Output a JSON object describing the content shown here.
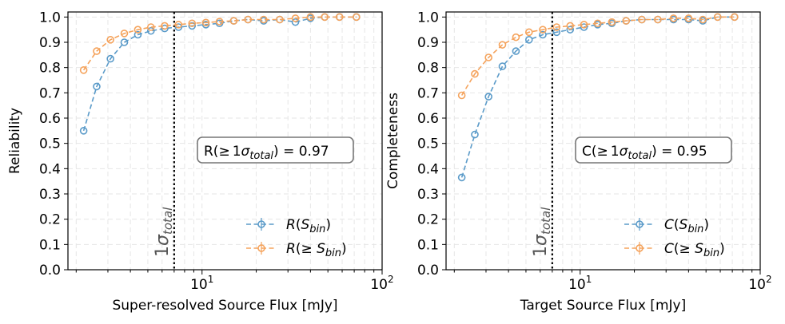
{
  "chart_data": [
    {
      "type": "line",
      "xscale": "log",
      "xlim": [
        1.8,
        100
      ],
      "ylim": [
        0.0,
        1.02
      ],
      "xlabel": "Super-resolved Source Flux [mJy]",
      "ylabel": "Reliability",
      "xticks": [
        "10",
        "1",
        "10",
        "2"
      ],
      "yticks": [
        "0.0",
        "0.1",
        "0.2",
        "0.3",
        "0.4",
        "0.5",
        "0.6",
        "0.7",
        "0.8",
        "0.9",
        "1.0"
      ],
      "grid": true,
      "vline": {
        "x": 7.0,
        "label": "1",
        "label_sym": "σ",
        "label_sub": "total"
      },
      "annotation": {
        "prefix": "R(",
        "ge": "≥",
        "one": "1",
        "sigma": "σ",
        "sub": "total",
        "suffix": ") = 0.97"
      },
      "legend_position": "lower-right",
      "series": [
        {
          "name": "R(S_bin)",
          "legend": {
            "letter": "R",
            "open": "(",
            "S": "S",
            "sub": "bin",
            "close": ")",
            "ge": ""
          },
          "color": "#5b9bc9",
          "x": [
            2.2,
            2.6,
            3.1,
            3.7,
            4.4,
            5.2,
            6.2,
            7.4,
            8.8,
            10.5,
            12.5,
            15.0,
            18.0,
            22.0,
            27.0,
            33.0,
            40.0,
            48.0,
            58.0,
            72.0
          ],
          "y": [
            0.55,
            0.725,
            0.835,
            0.9,
            0.93,
            0.945,
            0.955,
            0.96,
            0.965,
            0.97,
            0.975,
            0.985,
            0.99,
            0.985,
            0.99,
            0.98,
            0.995,
            1.0,
            1.0,
            1.0
          ]
        },
        {
          "name": "R(≥S_bin)",
          "legend": {
            "letter": "R",
            "open": "(",
            "S": "S",
            "sub": "bin",
            "close": ")",
            "ge": "≥ "
          },
          "color": "#f5a35c",
          "x": [
            2.2,
            2.6,
            3.1,
            3.7,
            4.4,
            5.2,
            6.2,
            7.4,
            8.8,
            10.5,
            12.5,
            15.0,
            18.0,
            22.0,
            27.0,
            33.0,
            40.0,
            48.0,
            58.0,
            72.0
          ],
          "y": [
            0.79,
            0.865,
            0.91,
            0.935,
            0.95,
            0.96,
            0.965,
            0.97,
            0.975,
            0.978,
            0.982,
            0.985,
            0.99,
            0.99,
            0.99,
            0.995,
            1.0,
            1.0,
            1.0,
            1.0
          ]
        }
      ]
    },
    {
      "type": "line",
      "xscale": "log",
      "xlim": [
        1.8,
        100
      ],
      "ylim": [
        0.0,
        1.02
      ],
      "xlabel": "Target Source Flux [mJy]",
      "ylabel": "Completeness",
      "xticks": [
        "10",
        "1",
        "10",
        "2"
      ],
      "yticks": [
        "0.0",
        "0.1",
        "0.2",
        "0.3",
        "0.4",
        "0.5",
        "0.6",
        "0.7",
        "0.8",
        "0.9",
        "1.0"
      ],
      "grid": true,
      "vline": {
        "x": 7.0,
        "label": "1",
        "label_sym": "σ",
        "label_sub": "total"
      },
      "annotation": {
        "prefix": "C(",
        "ge": "≥",
        "one": "1",
        "sigma": "σ",
        "sub": "total",
        "suffix": ") = 0.95"
      },
      "legend_position": "lower-right",
      "series": [
        {
          "name": "C(S_bin)",
          "legend": {
            "letter": "C",
            "open": "(",
            "S": "S",
            "sub": "bin",
            "close": ")",
            "ge": ""
          },
          "color": "#5b9bc9",
          "x": [
            2.2,
            2.6,
            3.1,
            3.7,
            4.4,
            5.2,
            6.2,
            7.4,
            8.8,
            10.5,
            12.5,
            15.0,
            18.0,
            22.0,
            27.0,
            33.0,
            40.0,
            48.0,
            58.0,
            72.0
          ],
          "y": [
            0.365,
            0.535,
            0.685,
            0.805,
            0.865,
            0.91,
            0.93,
            0.94,
            0.95,
            0.96,
            0.97,
            0.975,
            0.985,
            0.99,
            0.99,
            0.99,
            0.99,
            0.985,
            1.0,
            1.0
          ]
        },
        {
          "name": "C(≥S_bin)",
          "legend": {
            "letter": "C",
            "open": "(",
            "S": "S",
            "sub": "bin",
            "close": ")",
            "ge": "≥ "
          },
          "color": "#f5a35c",
          "x": [
            2.2,
            2.6,
            3.1,
            3.7,
            4.4,
            5.2,
            6.2,
            7.4,
            8.8,
            10.5,
            12.5,
            15.0,
            18.0,
            22.0,
            27.0,
            33.0,
            40.0,
            48.0,
            58.0,
            72.0
          ],
          "y": [
            0.69,
            0.775,
            0.84,
            0.89,
            0.92,
            0.94,
            0.95,
            0.96,
            0.965,
            0.97,
            0.975,
            0.98,
            0.985,
            0.99,
            0.99,
            0.995,
            0.995,
            0.99,
            1.0,
            1.0
          ]
        }
      ]
    }
  ]
}
